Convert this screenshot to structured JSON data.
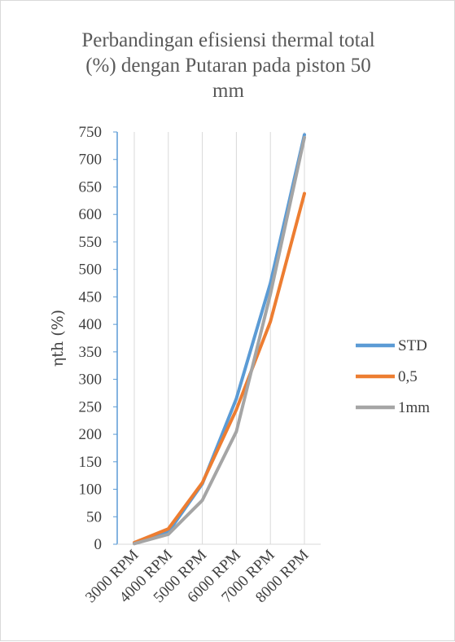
{
  "chart_data": {
    "type": "line",
    "title_lines": [
      "Perbandingan efisiensi thermal total",
      "(%) dengan Putaran pada piston 50",
      "mm"
    ],
    "ylabel": "ηth (%)",
    "xlabel": "",
    "categories": [
      "3000 RPM",
      "4000 RPM",
      "5000 RPM",
      "6000 RPM",
      "7000 RPM",
      "8000 RPM"
    ],
    "ylim": [
      0,
      750
    ],
    "yticks": [
      0,
      50,
      100,
      150,
      200,
      250,
      300,
      350,
      400,
      450,
      500,
      550,
      600,
      650,
      700,
      750
    ],
    "grid": "vertical",
    "legend_position": "right",
    "series": [
      {
        "name": "STD",
        "color": "#5B9BD5",
        "values": [
          2,
          22,
          110,
          265,
          475,
          745
        ]
      },
      {
        "name": "0,5",
        "color": "#ED7D31",
        "values": [
          3,
          28,
          112,
          245,
          405,
          638
        ]
      },
      {
        "name": "1mm",
        "color": "#A5A5A5",
        "values": [
          1,
          18,
          80,
          205,
          455,
          740
        ]
      }
    ],
    "axis_color": "#5B9BD5",
    "grid_color": "#d9d9d9"
  }
}
